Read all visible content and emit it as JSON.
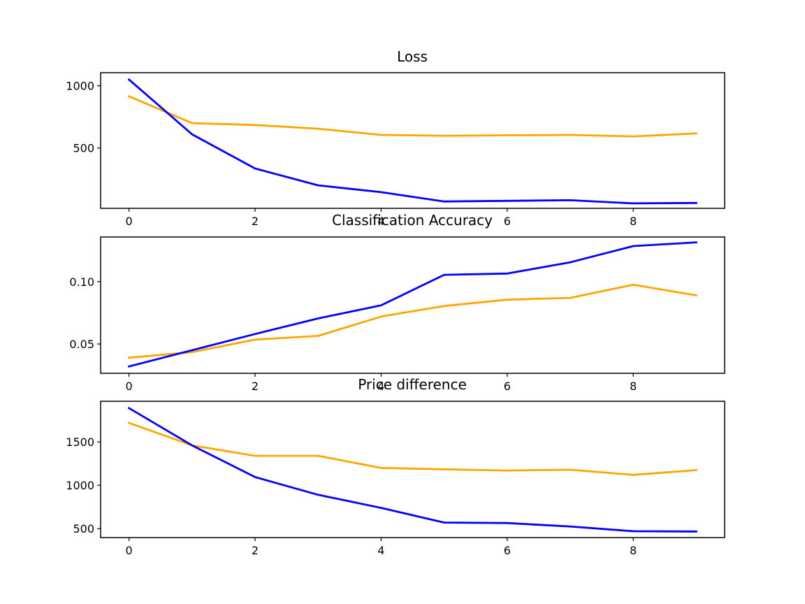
{
  "chart_data": [
    {
      "type": "line",
      "title": "Loss",
      "xlabel": "",
      "ylabel": "",
      "x": [
        0,
        1,
        2,
        3,
        4,
        5,
        6,
        7,
        8,
        9
      ],
      "xticks": [
        0,
        2,
        4,
        6,
        8
      ],
      "xlim": [
        -0.45,
        9.45
      ],
      "yticks": [
        500,
        1000
      ],
      "ytick_labels": [
        "500",
        "1000"
      ],
      "ylim": [
        15,
        1105
      ],
      "grid": false,
      "series": [
        {
          "color": "#0000ff",
          "values": [
            1050,
            610,
            335,
            200,
            145,
            70,
            75,
            80,
            55,
            58
          ]
        },
        {
          "color": "#ffa500",
          "values": [
            915,
            700,
            685,
            655,
            605,
            598,
            602,
            605,
            593,
            617
          ]
        }
      ]
    },
    {
      "type": "line",
      "title": "Classification Accuracy",
      "xlabel": "",
      "ylabel": "",
      "x": [
        0,
        1,
        2,
        3,
        4,
        5,
        6,
        7,
        8,
        9
      ],
      "xticks": [
        0,
        2,
        4,
        6,
        8
      ],
      "xlim": [
        -0.45,
        9.45
      ],
      "yticks": [
        0.05,
        0.1
      ],
      "ytick_labels": [
        "0.05",
        "0.10"
      ],
      "ylim": [
        0.0265,
        0.1358
      ],
      "grid": false,
      "series": [
        {
          "color": "#0000ff",
          "values": [
            0.032,
            0.045,
            0.058,
            0.0705,
            0.081,
            0.1055,
            0.1065,
            0.1155,
            0.1285,
            0.1315
          ]
        },
        {
          "color": "#ffa500",
          "values": [
            0.039,
            0.0435,
            0.0535,
            0.0565,
            0.072,
            0.0805,
            0.0855,
            0.087,
            0.0975,
            0.089
          ]
        }
      ]
    },
    {
      "type": "line",
      "title": "Price difference",
      "xlabel": "",
      "ylabel": "",
      "x": [
        0,
        1,
        2,
        3,
        4,
        5,
        6,
        7,
        8,
        9
      ],
      "xticks": [
        0,
        2,
        4,
        6,
        8
      ],
      "xlim": [
        -0.45,
        9.45
      ],
      "yticks": [
        500,
        1000,
        1500
      ],
      "ytick_labels": [
        "500",
        "1000",
        "1500"
      ],
      "ylim": [
        397,
        1969
      ],
      "grid": false,
      "series": [
        {
          "color": "#0000ff",
          "values": [
            1890,
            1460,
            1095,
            890,
            740,
            570,
            565,
            525,
            470,
            467
          ]
        },
        {
          "color": "#ffa500",
          "values": [
            1720,
            1460,
            1340,
            1340,
            1200,
            1185,
            1170,
            1180,
            1120,
            1175
          ]
        }
      ]
    }
  ]
}
